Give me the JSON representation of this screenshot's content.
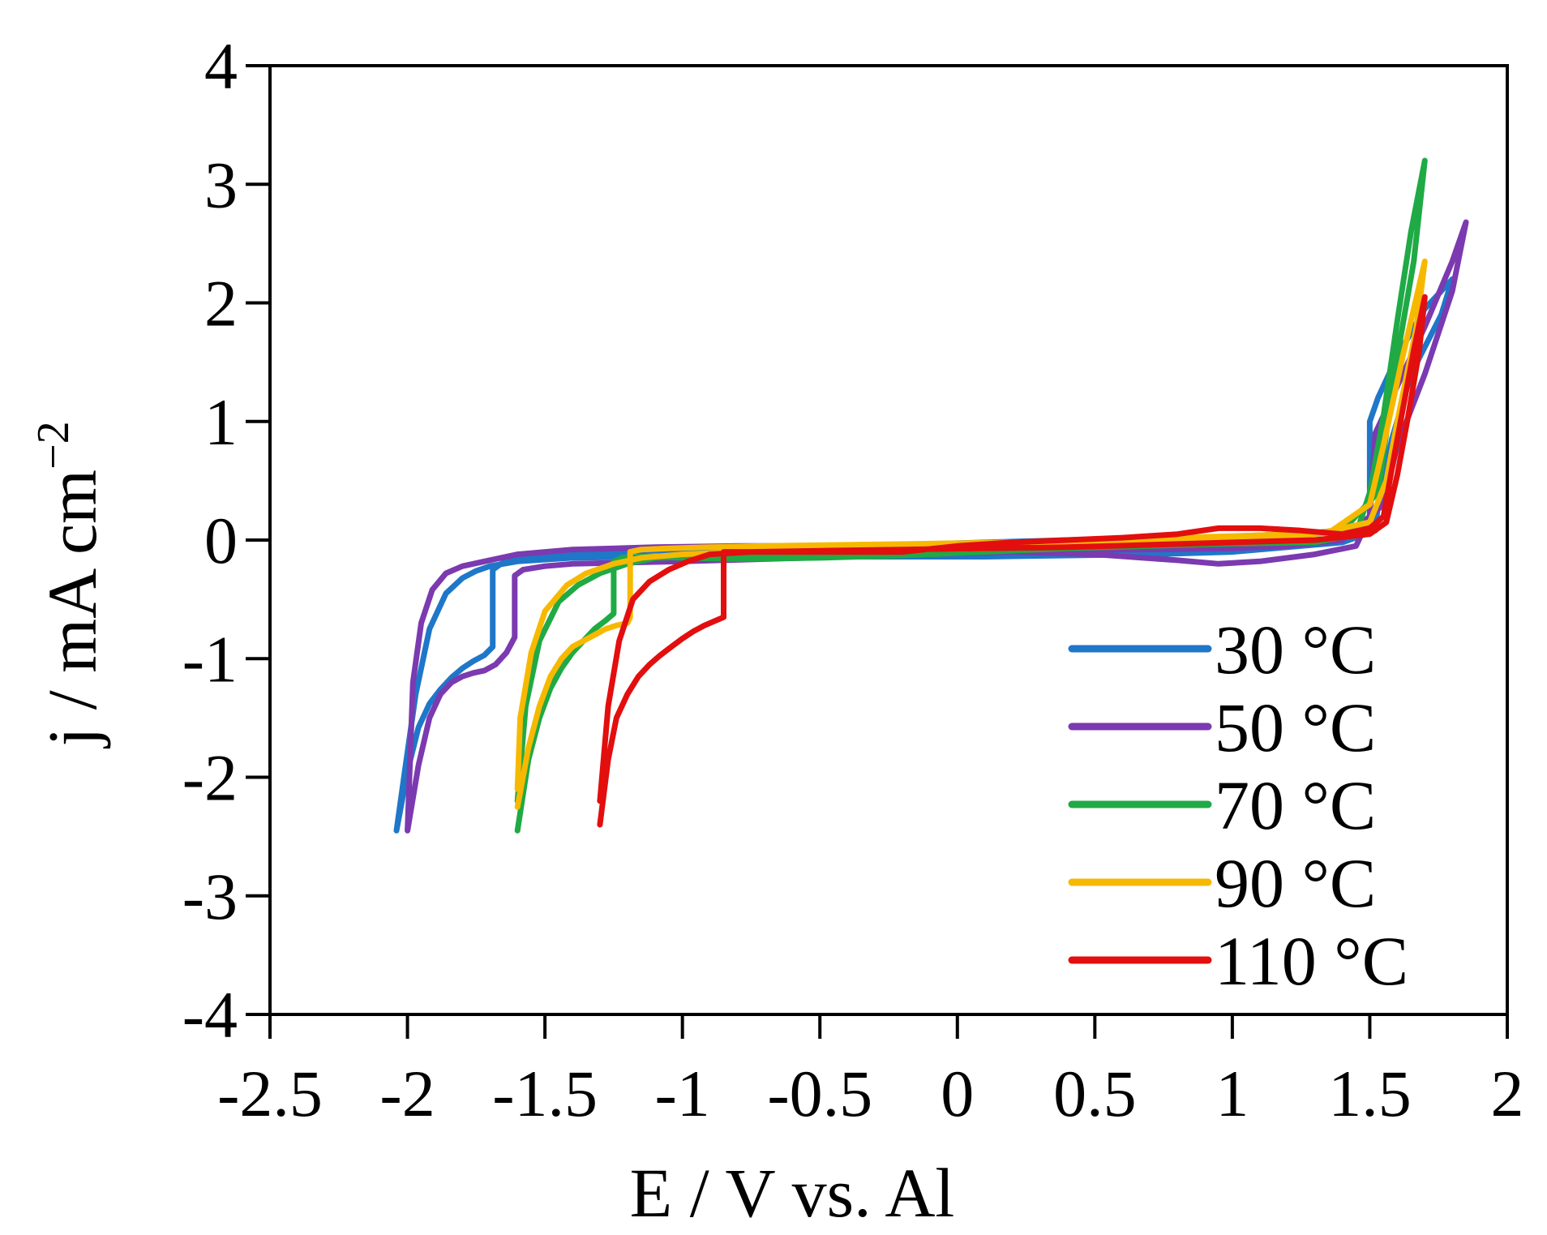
{
  "chart_data": {
    "type": "line",
    "title": "",
    "xlabel": "E / V vs. Al",
    "ylabel": "j / mA cm",
    "ylabel_exponent": "−2",
    "xlim": [
      -2.5,
      2
    ],
    "ylim": [
      -4,
      4
    ],
    "xticks": [
      -2.5,
      -2,
      -1.5,
      -1,
      -0.5,
      0,
      0.5,
      1,
      1.5,
      2
    ],
    "xtick_labels": [
      "-2.5",
      "-2",
      "-1.5",
      "-1",
      "-0.5",
      "0",
      "0.5",
      "1",
      "1.5",
      "2"
    ],
    "yticks": [
      -4,
      -3,
      -2,
      -1,
      0,
      1,
      2,
      3,
      4
    ],
    "ytick_labels": [
      "-4",
      "-3",
      "-2",
      "-1",
      "0",
      "1",
      "2",
      "3",
      "4"
    ],
    "grid": false,
    "legend_position": "bottom-right",
    "series": [
      {
        "name": "30 °C",
        "color": "#1f77c9",
        "x": [
          -2.04,
          -2.0,
          -1.96,
          -1.92,
          -1.88,
          -1.84,
          -1.8,
          -1.76,
          -1.72,
          -1.69,
          -1.69,
          -1.66,
          -1.62,
          -1.55,
          -1.45,
          -1.3,
          -1.1,
          -0.8,
          -0.5,
          -0.2,
          0.1,
          0.4,
          0.7,
          1.0,
          1.3,
          1.45,
          1.5,
          1.5,
          1.53,
          1.6,
          1.7,
          1.8,
          1.76,
          1.65,
          1.58,
          1.53,
          1.52,
          1.4,
          1.2,
          1.0,
          0.7,
          0.4,
          0.1,
          -0.2,
          -0.5,
          -0.8,
          -1.1,
          -1.4,
          -1.6,
          -1.7,
          -1.75,
          -1.8,
          -1.86,
          -1.92,
          -1.97,
          -2.01,
          -2.04
        ],
        "y": [
          -2.45,
          -1.95,
          -1.58,
          -1.38,
          -1.26,
          -1.16,
          -1.08,
          -1.02,
          -0.97,
          -0.9,
          -0.25,
          -0.2,
          -0.16,
          -0.13,
          -0.11,
          -0.1,
          -0.09,
          -0.08,
          -0.06,
          -0.04,
          -0.02,
          0.0,
          0.01,
          0.03,
          0.06,
          0.1,
          0.15,
          1.0,
          1.2,
          1.55,
          1.95,
          2.2,
          1.9,
          1.4,
          0.85,
          0.3,
          0.08,
          -0.02,
          -0.06,
          -0.1,
          -0.12,
          -0.13,
          -0.14,
          -0.14,
          -0.14,
          -0.14,
          -0.14,
          -0.15,
          -0.18,
          -0.22,
          -0.26,
          -0.32,
          -0.45,
          -0.75,
          -1.3,
          -1.95,
          -2.45
        ]
      },
      {
        "name": "50 °C",
        "color": "#7b3ab0",
        "x": [
          -2.0,
          -1.96,
          -1.92,
          -1.88,
          -1.84,
          -1.8,
          -1.76,
          -1.72,
          -1.68,
          -1.64,
          -1.61,
          -1.61,
          -1.58,
          -1.5,
          -1.4,
          -1.2,
          -1.0,
          -0.7,
          -0.4,
          -0.1,
          0.2,
          0.5,
          0.8,
          0.95,
          1.1,
          1.3,
          1.45,
          1.5,
          1.52,
          1.6,
          1.7,
          1.8,
          1.85,
          1.8,
          1.7,
          1.6,
          1.55,
          1.4,
          1.2,
          1.0,
          0.7,
          0.4,
          0.1,
          -0.2,
          -0.5,
          -0.8,
          -1.1,
          -1.4,
          -1.6,
          -1.72,
          -1.8,
          -1.86,
          -1.91,
          -1.95,
          -1.98,
          -2.0
        ],
        "y": [
          -2.45,
          -1.9,
          -1.5,
          -1.3,
          -1.2,
          -1.15,
          -1.12,
          -1.1,
          -1.05,
          -0.95,
          -0.82,
          -0.3,
          -0.25,
          -0.22,
          -0.2,
          -0.19,
          -0.18,
          -0.16,
          -0.14,
          -0.12,
          -0.1,
          -0.12,
          -0.17,
          -0.2,
          -0.18,
          -0.12,
          -0.05,
          0.2,
          0.9,
          1.3,
          1.8,
          2.35,
          2.68,
          2.1,
          1.4,
          0.8,
          0.3,
          0.0,
          -0.05,
          -0.07,
          -0.08,
          -0.08,
          -0.07,
          -0.06,
          -0.05,
          -0.05,
          -0.06,
          -0.08,
          -0.12,
          -0.18,
          -0.22,
          -0.28,
          -0.42,
          -0.7,
          -1.2,
          -2.45
        ]
      },
      {
        "name": "70 °C",
        "color": "#1faa45",
        "x": [
          -1.6,
          -1.56,
          -1.52,
          -1.48,
          -1.44,
          -1.4,
          -1.36,
          -1.32,
          -1.28,
          -1.25,
          -1.25,
          -1.22,
          -1.15,
          -1.0,
          -0.8,
          -0.5,
          -0.2,
          0.1,
          0.4,
          0.7,
          1.0,
          1.3,
          1.45,
          1.5,
          1.55,
          1.6,
          1.65,
          1.7,
          1.66,
          1.6,
          1.56,
          1.53,
          1.4,
          1.2,
          0.9,
          0.6,
          0.3,
          0.0,
          -0.3,
          -0.6,
          -0.9,
          -1.1,
          -1.2,
          -1.3,
          -1.38,
          -1.45,
          -1.52,
          -1.57,
          -1.6
        ],
        "y": [
          -2.45,
          -1.85,
          -1.5,
          -1.25,
          -1.08,
          -0.95,
          -0.85,
          -0.75,
          -0.68,
          -0.62,
          -0.18,
          -0.15,
          -0.14,
          -0.15,
          -0.16,
          -0.15,
          -0.13,
          -0.1,
          -0.07,
          -0.05,
          -0.03,
          -0.02,
          0.05,
          0.4,
          1.05,
          1.85,
          2.6,
          3.2,
          2.35,
          1.55,
          0.9,
          0.4,
          0.08,
          0.02,
          -0.02,
          -0.04,
          -0.06,
          -0.08,
          -0.1,
          -0.12,
          -0.14,
          -0.15,
          -0.2,
          -0.28,
          -0.38,
          -0.52,
          -0.85,
          -1.4,
          -2.2
        ]
      },
      {
        "name": "90 °C",
        "color": "#f7b900",
        "x": [
          -1.6,
          -1.56,
          -1.52,
          -1.48,
          -1.44,
          -1.4,
          -1.36,
          -1.32,
          -1.28,
          -1.24,
          -1.2,
          -1.19,
          -1.19,
          -1.15,
          -1.05,
          -0.9,
          -0.7,
          -0.4,
          -0.1,
          0.2,
          0.5,
          0.8,
          1.1,
          1.35,
          1.5,
          1.55,
          1.62,
          1.7,
          1.67,
          1.6,
          1.56,
          1.5,
          1.3,
          1.0,
          0.7,
          0.4,
          0.1,
          -0.2,
          -0.5,
          -0.8,
          -1.0,
          -1.15,
          -1.25,
          -1.35,
          -1.42,
          -1.5,
          -1.55,
          -1.59,
          -1.6
        ],
        "y": [
          -2.25,
          -1.75,
          -1.4,
          -1.15,
          -1.0,
          -0.9,
          -0.85,
          -0.8,
          -0.75,
          -0.72,
          -0.7,
          -0.65,
          -0.1,
          -0.08,
          -0.07,
          -0.06,
          -0.05,
          -0.04,
          -0.03,
          -0.02,
          0.0,
          0.02,
          0.04,
          0.06,
          0.3,
          0.8,
          1.55,
          2.35,
          1.8,
          1.0,
          0.5,
          0.15,
          0.05,
          0.0,
          -0.03,
          -0.05,
          -0.07,
          -0.08,
          -0.09,
          -0.1,
          -0.12,
          -0.15,
          -0.2,
          -0.28,
          -0.38,
          -0.6,
          -0.95,
          -1.5,
          -2.1
        ]
      },
      {
        "name": "110 °C",
        "color": "#e30e0e",
        "x": [
          -1.3,
          -1.27,
          -1.24,
          -1.2,
          -1.16,
          -1.12,
          -1.08,
          -1.04,
          -1.0,
          -0.96,
          -0.92,
          -0.88,
          -0.85,
          -0.85,
          -0.82,
          -0.75,
          -0.6,
          -0.4,
          -0.2,
          0.0,
          0.2,
          0.4,
          0.6,
          0.8,
          0.95,
          1.1,
          1.25,
          1.4,
          1.5,
          1.55,
          1.58,
          1.62,
          1.66,
          1.7,
          1.68,
          1.64,
          1.6,
          1.56,
          1.5,
          1.3,
          1.0,
          0.7,
          0.4,
          0.1,
          -0.2,
          -0.5,
          -0.75,
          -0.9,
          -0.98,
          -1.05,
          -1.12,
          -1.18,
          -1.23,
          -1.27,
          -1.3
        ],
        "y": [
          -2.4,
          -1.85,
          -1.5,
          -1.3,
          -1.15,
          -1.05,
          -0.97,
          -0.9,
          -0.83,
          -0.77,
          -0.72,
          -0.68,
          -0.65,
          -0.1,
          -0.1,
          -0.1,
          -0.1,
          -0.1,
          -0.1,
          -0.05,
          -0.02,
          0.0,
          0.02,
          0.05,
          0.1,
          0.1,
          0.08,
          0.05,
          0.1,
          0.2,
          0.6,
          1.1,
          1.6,
          2.05,
          1.6,
          1.05,
          0.55,
          0.15,
          0.05,
          0.0,
          -0.02,
          -0.04,
          -0.06,
          -0.07,
          -0.08,
          -0.09,
          -0.1,
          -0.12,
          -0.18,
          -0.25,
          -0.35,
          -0.5,
          -0.85,
          -1.4,
          -2.2
        ]
      }
    ]
  }
}
